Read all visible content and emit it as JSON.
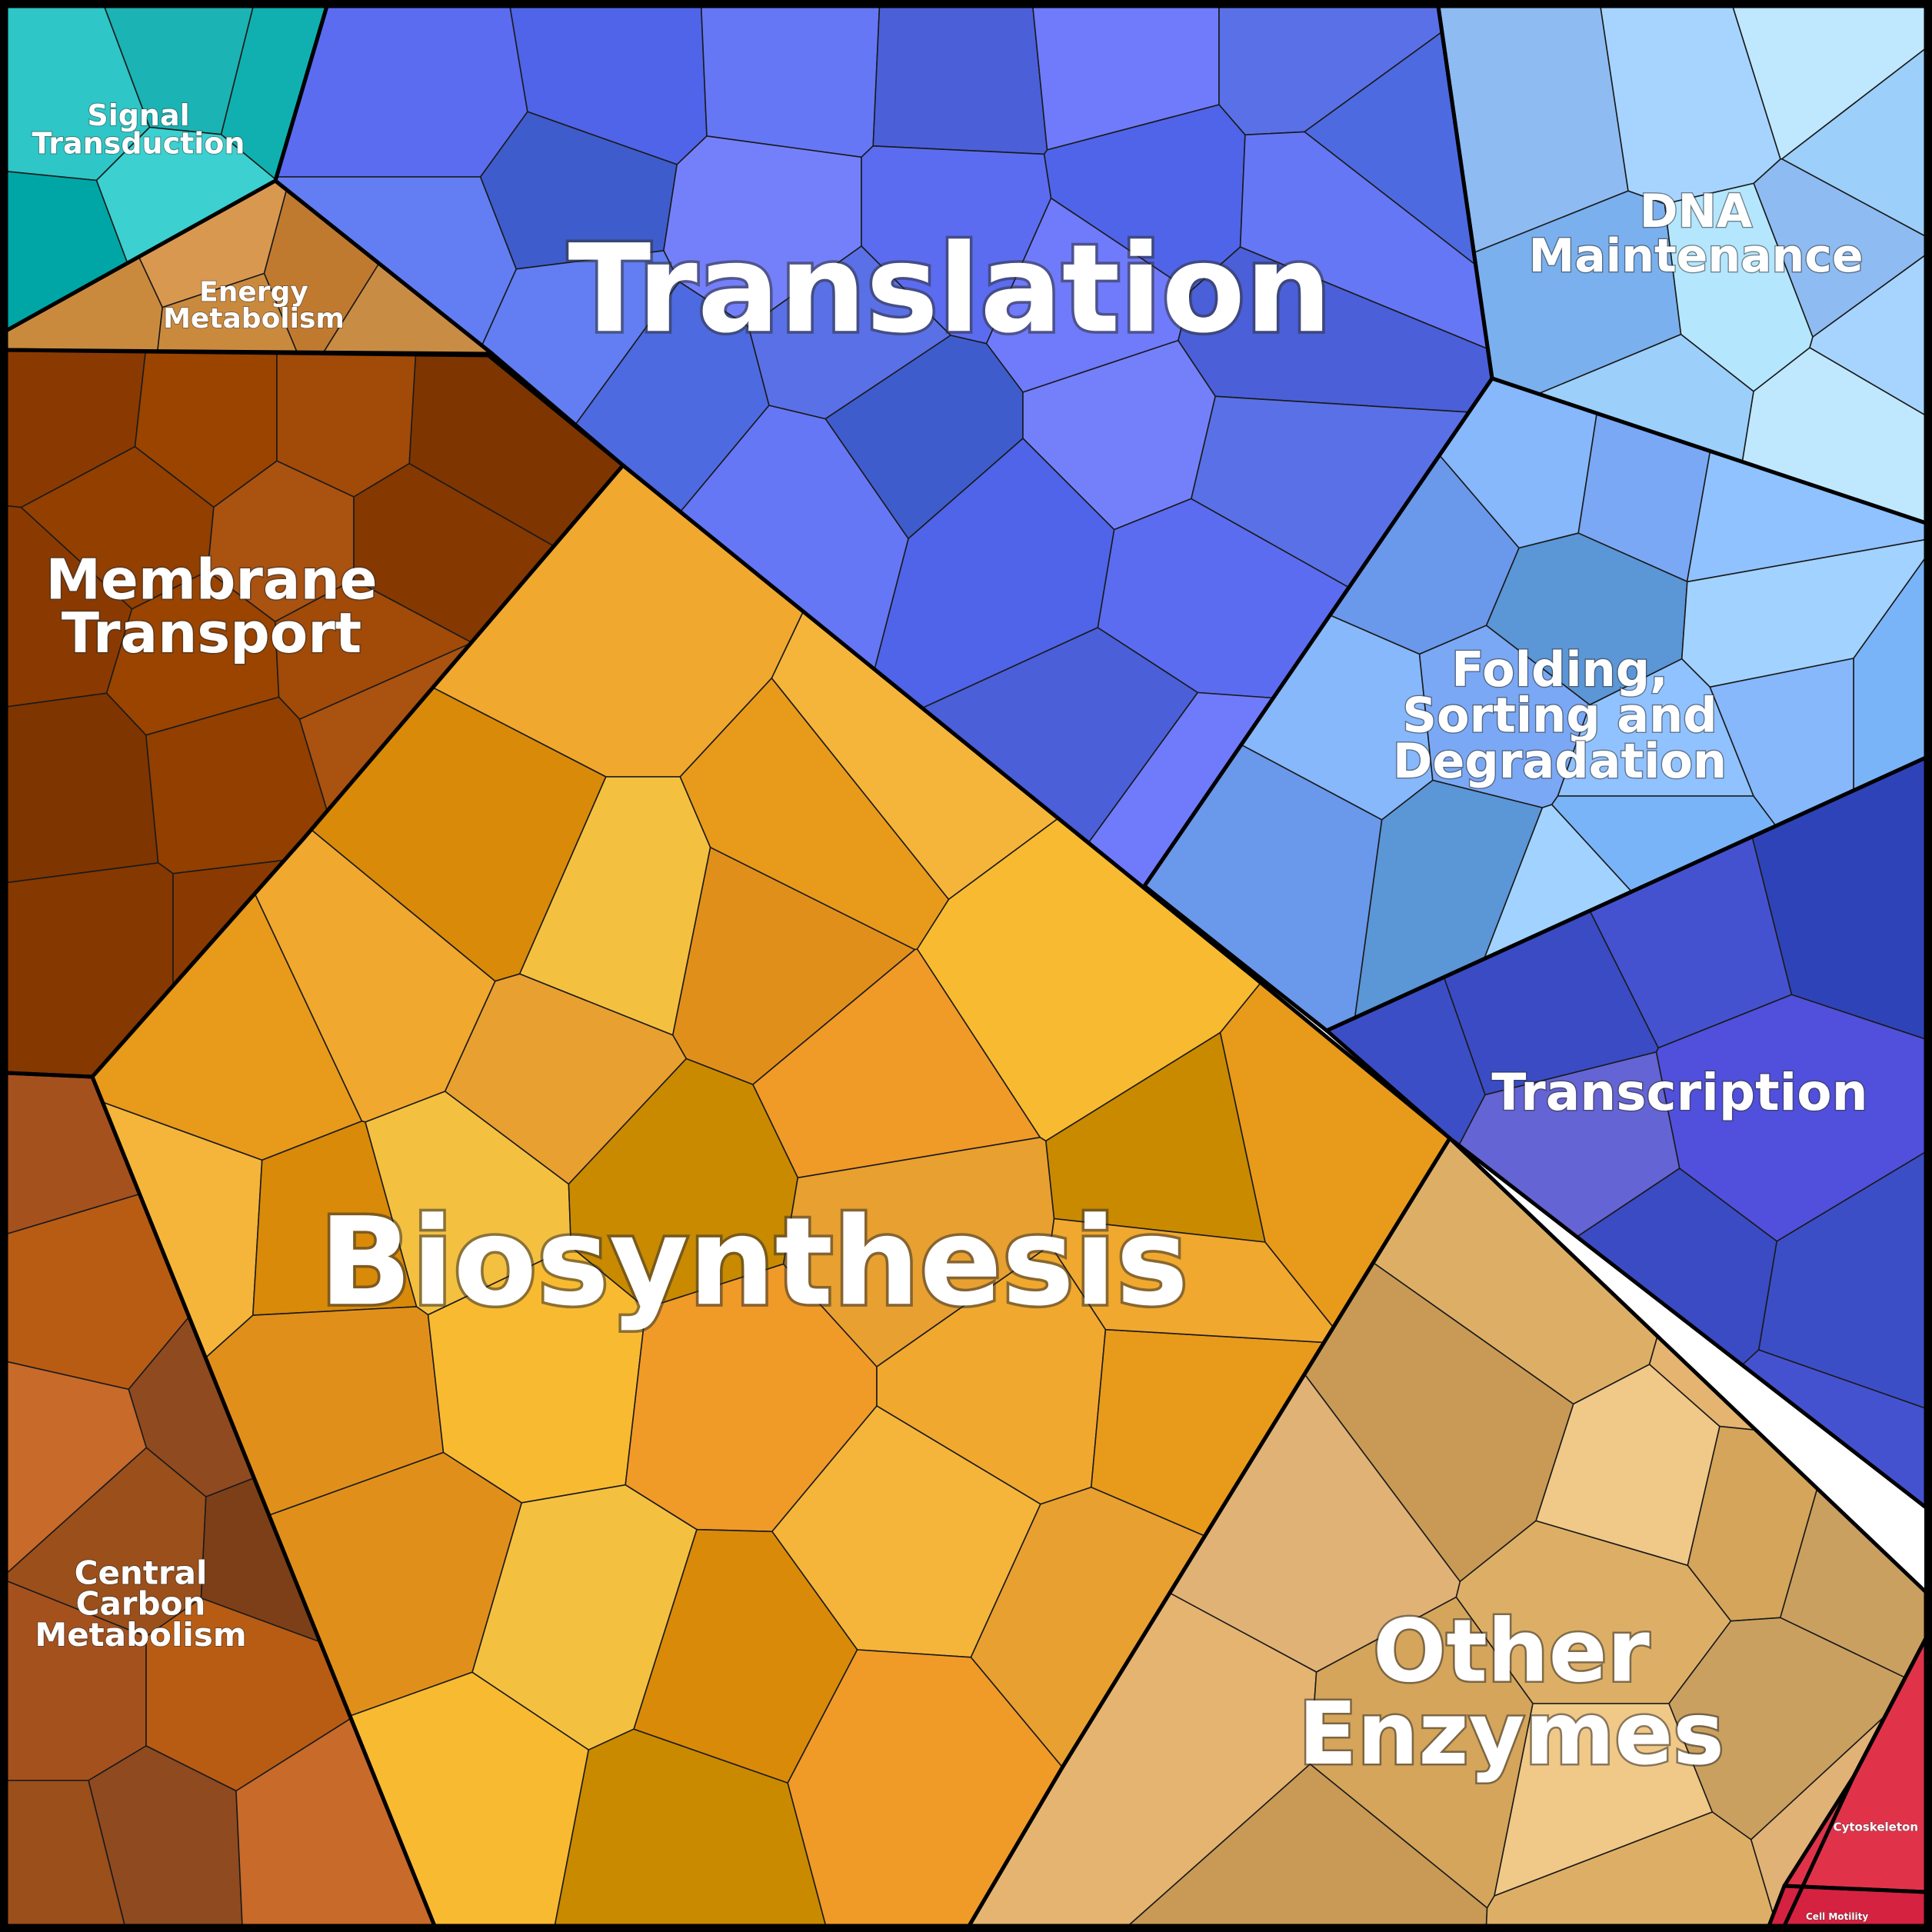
{
  "chart_data": {
    "type": "voronoi-treemap",
    "categories": [
      {
        "name": "Translation",
        "label": [
          "Translation"
        ],
        "color": "#5b6cf0"
      },
      {
        "name": "Biosynthesis",
        "label": [
          "Biosynthesis"
        ],
        "color": "#f0a82e"
      },
      {
        "name": "Membrane Transport",
        "label": [
          "Membrane",
          "Transport"
        ],
        "color": "#8a3a00"
      },
      {
        "name": "Other Enzymes",
        "label": [
          "Other",
          "Enzymes"
        ],
        "color": "#ddaf66"
      },
      {
        "name": "Folding, Sorting and Degradation",
        "label": [
          "Folding,",
          "Sorting and",
          "Degradation"
        ],
        "color": "#86b8fb"
      },
      {
        "name": "DNA Maintenance",
        "label": [
          "DNA",
          "Maintenance"
        ],
        "color": "#8ebbf1"
      },
      {
        "name": "Transcription",
        "label": [
          "Transcription"
        ],
        "color": "#3c4ec6"
      },
      {
        "name": "Central Carbon Metabolism",
        "label": [
          "Central",
          "Carbon",
          "Metabolism"
        ],
        "color": "#a5511e"
      },
      {
        "name": "Energy Metabolism",
        "label": [
          "Energy",
          "Metabolism"
        ],
        "color": "#ca8a3e"
      },
      {
        "name": "Signal Transduction",
        "label": [
          "Signal",
          "Transduction"
        ],
        "color": "#2ec6c6"
      },
      {
        "name": "Cytoskeleton",
        "label": [
          "Cytoskeleton"
        ],
        "color": "#e0334a"
      },
      {
        "name": "Cell Motility",
        "label": [
          "Cell Motility"
        ],
        "color": "#d42240"
      }
    ]
  }
}
